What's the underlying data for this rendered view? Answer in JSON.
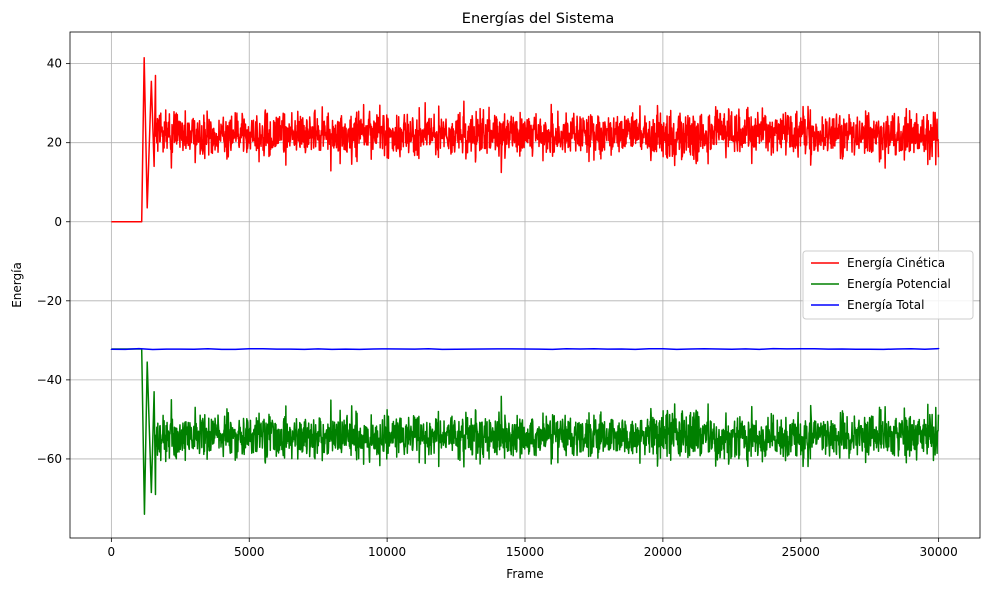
{
  "chart_data": {
    "type": "line",
    "title": "Energías del Sistema",
    "xlabel": "Frame",
    "ylabel": "Energía",
    "xlim": [
      -1500,
      31500
    ],
    "ylim": [
      -80,
      48
    ],
    "xticks": [
      0,
      5000,
      10000,
      15000,
      20000,
      25000,
      30000
    ],
    "xtick_labels": [
      "0",
      "5000",
      "10000",
      "15000",
      "20000",
      "25000",
      "30000"
    ],
    "yticks": [
      -60,
      -40,
      -20,
      0,
      20,
      40
    ],
    "ytick_labels": [
      "−60",
      "−40",
      "−20",
      "0",
      "20",
      "40"
    ],
    "grid": true,
    "legend_position": "center-right",
    "series": [
      {
        "name": "Energía Cinética",
        "color": "#ff0000",
        "equilibration": {
          "start": 0,
          "end": 1100,
          "value": 0.0
        },
        "key_points": [
          {
            "x": 1100,
            "y": 0.0
          },
          {
            "x": 1190,
            "y": 41.5
          },
          {
            "x": 1300,
            "y": 3.5
          },
          {
            "x": 1450,
            "y": 35.5
          },
          {
            "x": 1550,
            "y": 14.0
          },
          {
            "x": 1600,
            "y": 37.0
          }
        ],
        "steady_state": {
          "start": 1600,
          "end": 30000,
          "mean": 22.0,
          "min": 9.0,
          "max": 34.0
        }
      },
      {
        "name": "Energía Potencial",
        "color": "#008000",
        "equilibration": {
          "start": 0,
          "end": 1100,
          "value": -32.2
        },
        "key_points": [
          {
            "x": 1100,
            "y": -32.2
          },
          {
            "x": 1200,
            "y": -74.0
          },
          {
            "x": 1300,
            "y": -35.5
          },
          {
            "x": 1450,
            "y": -68.5
          },
          {
            "x": 1550,
            "y": -43.0
          },
          {
            "x": 1600,
            "y": -69.0
          }
        ],
        "steady_state": {
          "start": 1600,
          "end": 30000,
          "mean": -54.2,
          "min": -67.5,
          "max": -41.0
        }
      },
      {
        "name": "Energía Total",
        "color": "#0000ff",
        "constant": {
          "start": 0,
          "end": 30000,
          "value": -32.2
        }
      }
    ]
  }
}
